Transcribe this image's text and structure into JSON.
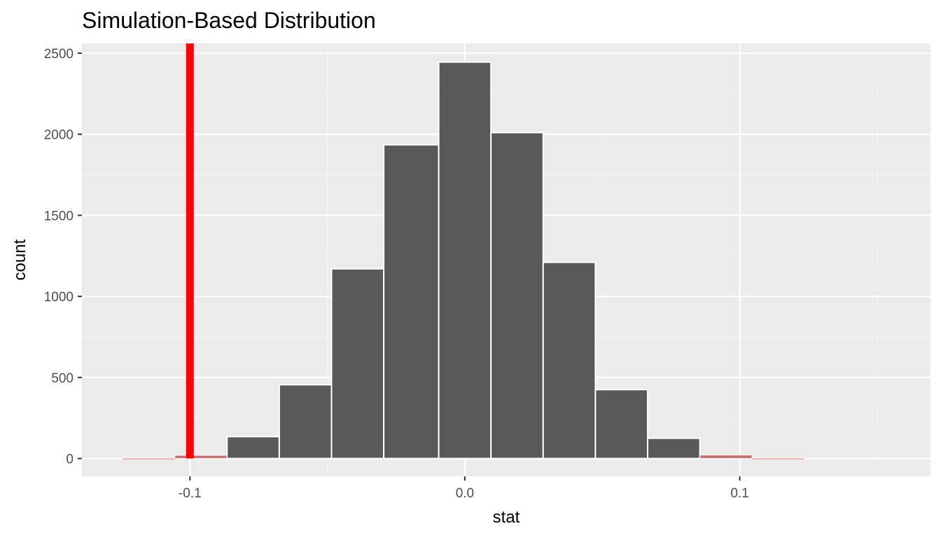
{
  "chart_data": {
    "type": "bar",
    "title": "Simulation-Based Distribution",
    "xlabel": "stat",
    "ylabel": "count",
    "xlim": [
      -0.1393,
      0.1694
    ],
    "ylim": [
      -110,
      2560
    ],
    "x_ticks": [
      -0.1,
      0.0,
      0.1
    ],
    "x_tick_labels": [
      "-0.1",
      "0.0",
      "0.1"
    ],
    "y_ticks": [
      0,
      500,
      1000,
      1500,
      2000,
      2500
    ],
    "y_tick_labels": [
      "0",
      "500",
      "1000",
      "1500",
      "2000",
      "2500"
    ],
    "grid": true,
    "bin_width": 0.019,
    "bins": [
      {
        "x0": -0.1245,
        "x1": -0.1055,
        "count": 2
      },
      {
        "x0": -0.1055,
        "x1": -0.0865,
        "count": 20
      },
      {
        "x0": -0.0865,
        "x1": -0.0675,
        "count": 135
      },
      {
        "x0": -0.0675,
        "x1": -0.0485,
        "count": 455
      },
      {
        "x0": -0.0485,
        "x1": -0.0295,
        "count": 1170
      },
      {
        "x0": -0.0295,
        "x1": -0.0095,
        "count": 1935
      },
      {
        "x0": -0.0095,
        "x1": 0.0095,
        "count": 2445
      },
      {
        "x0": 0.0095,
        "x1": 0.0285,
        "count": 2010
      },
      {
        "x0": 0.0285,
        "x1": 0.0475,
        "count": 1210
      },
      {
        "x0": 0.0475,
        "x1": 0.0665,
        "count": 425
      },
      {
        "x0": 0.0665,
        "x1": 0.0855,
        "count": 125
      },
      {
        "x0": 0.0855,
        "x1": 0.1045,
        "count": 22
      },
      {
        "x0": 0.1045,
        "x1": 0.1235,
        "count": 3
      }
    ],
    "observed_stat": -0.1,
    "shade_direction": "two-sided",
    "shaded_tail_bins": [
      0,
      1,
      11,
      12
    ],
    "colors": {
      "bar_fill": "#595959",
      "bar_edge": "#ffffff",
      "shade_fill": "#f08080",
      "obs_line": "#ff0000",
      "panel_bg": "#ebebeb",
      "grid_major": "#ffffff",
      "grid_minor": "#f5f5f5"
    }
  }
}
